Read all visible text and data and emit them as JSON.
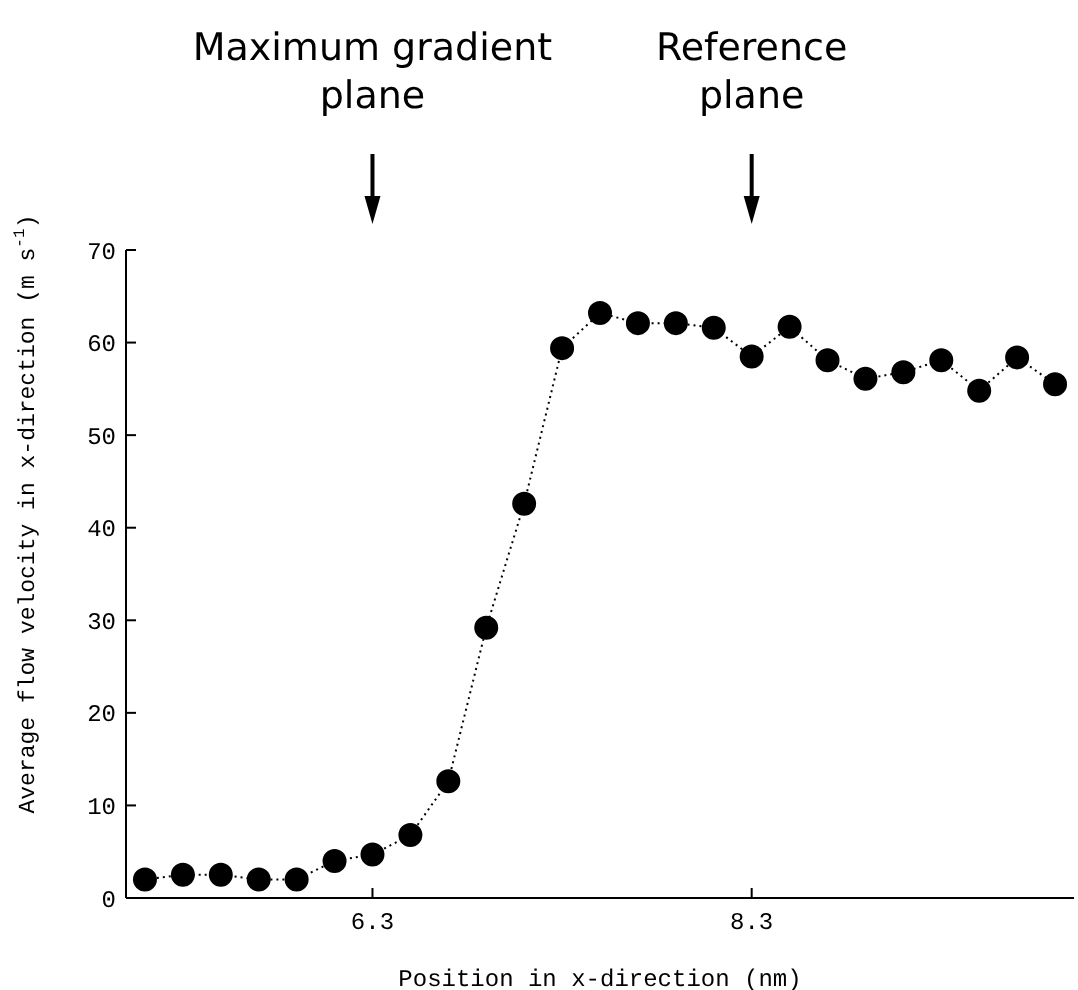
{
  "chart_data": {
    "type": "line",
    "xlabel": "Position in x-direction (nm)",
    "ylabel": "Average flow velocity in x-direction (m s$^{-1}$)",
    "x": [
      5.1,
      5.3,
      5.5,
      5.7,
      5.9,
      6.1,
      6.3,
      6.5,
      6.7,
      6.9,
      7.1,
      7.3,
      7.5,
      7.7,
      7.9,
      8.1,
      8.3,
      8.5,
      8.7,
      8.9,
      9.1,
      9.3,
      9.5,
      9.7,
      9.9
    ],
    "series": [
      {
        "color": "#000000",
        "values": [
          2,
          2.5,
          2.5,
          2,
          2,
          4,
          4.7,
          6.8,
          12.6,
          29.2,
          42.6,
          59.4,
          63.2,
          62.1,
          62.1,
          61.6,
          58.5,
          61.7,
          58.1,
          56.1,
          56.8,
          58.1,
          54.8,
          58.4,
          55.5
        ]
      }
    ],
    "xlim": [
      5.0,
      10.0
    ],
    "xticks": [
      6.3,
      8.3
    ],
    "ylim": [
      0,
      70
    ],
    "yticks": [
      0,
      10,
      20,
      30,
      40,
      50,
      60,
      70
    ],
    "marker": "circle",
    "line_style": "dotted",
    "grid": false,
    "legend": false,
    "annotations": [
      "Maximum gradient plane",
      "Reference plane"
    ]
  }
}
